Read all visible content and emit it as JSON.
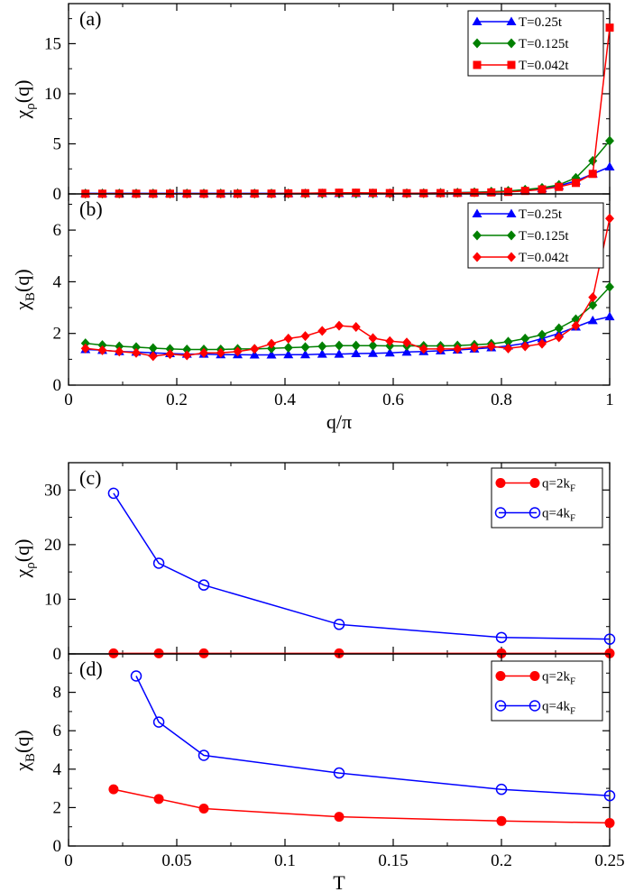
{
  "chart_data": [
    {
      "panel": "(a)",
      "type": "line",
      "xlabel": "",
      "ylabel": {
        "main": "χ",
        "sub": "ρ",
        "tail": "(q)"
      },
      "xlim": [
        0,
        1
      ],
      "ylim": [
        0,
        19
      ],
      "xticks": [
        0,
        0.2,
        0.4,
        0.6,
        0.8,
        1
      ],
      "yticks": [
        0,
        5,
        10,
        15
      ],
      "show_xtick_labels": false,
      "legend_position": "top-right",
      "x": [
        0.03125,
        0.0625,
        0.09375,
        0.125,
        0.15625,
        0.1875,
        0.21875,
        0.25,
        0.28125,
        0.3125,
        0.34375,
        0.375,
        0.40625,
        0.4375,
        0.46875,
        0.5,
        0.53125,
        0.5625,
        0.59375,
        0.625,
        0.65625,
        0.6875,
        0.71875,
        0.75,
        0.78125,
        0.8125,
        0.84375,
        0.875,
        0.90625,
        0.9375,
        0.96875,
        1.0
      ],
      "series": [
        {
          "name": "T=0.25t",
          "color": "#0000ff",
          "marker": "triangle",
          "values": [
            0.05,
            0.05,
            0.05,
            0.05,
            0.05,
            0.05,
            0.05,
            0.05,
            0.05,
            0.05,
            0.05,
            0.05,
            0.05,
            0.05,
            0.05,
            0.05,
            0.05,
            0.05,
            0.06,
            0.07,
            0.08,
            0.1,
            0.12,
            0.15,
            0.2,
            0.28,
            0.4,
            0.55,
            0.8,
            1.3,
            2.0,
            2.7
          ]
        },
        {
          "name": "T=0.125t",
          "color": "#008000",
          "marker": "diamond",
          "values": [
            0.03,
            0.03,
            0.03,
            0.03,
            0.03,
            0.03,
            0.03,
            0.03,
            0.03,
            0.03,
            0.03,
            0.03,
            0.03,
            0.03,
            0.03,
            0.04,
            0.04,
            0.04,
            0.05,
            0.06,
            0.07,
            0.09,
            0.12,
            0.16,
            0.22,
            0.3,
            0.42,
            0.6,
            0.9,
            1.6,
            3.3,
            5.3
          ]
        },
        {
          "name": "T=0.042t",
          "color": "#ff0000",
          "marker": "square",
          "values": [
            0.02,
            0.02,
            0.02,
            0.02,
            0.02,
            0.02,
            0.02,
            0.02,
            0.02,
            0.02,
            0.03,
            0.03,
            0.05,
            0.07,
            0.1,
            0.12,
            0.12,
            0.1,
            0.08,
            0.07,
            0.07,
            0.08,
            0.1,
            0.12,
            0.15,
            0.2,
            0.3,
            0.45,
            0.7,
            1.1,
            2.0,
            16.6
          ]
        }
      ]
    },
    {
      "panel": "(b)",
      "type": "line",
      "xlabel": "q/π",
      "ylabel": {
        "main": "χ",
        "sub": "B",
        "tail": "(q)"
      },
      "xlim": [
        0,
        1
      ],
      "ylim": [
        0,
        7.4
      ],
      "xticks": [
        0,
        0.2,
        0.4,
        0.6,
        0.8,
        1
      ],
      "yticks": [
        0,
        2,
        4,
        6
      ],
      "show_xtick_labels": true,
      "legend_position": "top-right",
      "x": [
        0.03125,
        0.0625,
        0.09375,
        0.125,
        0.15625,
        0.1875,
        0.21875,
        0.25,
        0.28125,
        0.3125,
        0.34375,
        0.375,
        0.40625,
        0.4375,
        0.46875,
        0.5,
        0.53125,
        0.5625,
        0.59375,
        0.625,
        0.65625,
        0.6875,
        0.71875,
        0.75,
        0.78125,
        0.8125,
        0.84375,
        0.875,
        0.90625,
        0.9375,
        0.96875,
        1.0
      ],
      "series": [
        {
          "name": "T=0.25t",
          "color": "#0000ff",
          "marker": "triangle",
          "values": [
            1.38,
            1.35,
            1.3,
            1.28,
            1.25,
            1.22,
            1.2,
            1.2,
            1.18,
            1.18,
            1.17,
            1.17,
            1.18,
            1.18,
            1.2,
            1.2,
            1.22,
            1.23,
            1.25,
            1.28,
            1.3,
            1.33,
            1.36,
            1.4,
            1.45,
            1.52,
            1.62,
            1.8,
            2.0,
            2.25,
            2.5,
            2.65
          ]
        },
        {
          "name": "T=0.125t",
          "color": "#008000",
          "marker": "diamond",
          "values": [
            1.62,
            1.55,
            1.5,
            1.47,
            1.43,
            1.4,
            1.38,
            1.38,
            1.38,
            1.4,
            1.4,
            1.42,
            1.45,
            1.47,
            1.5,
            1.53,
            1.53,
            1.53,
            1.52,
            1.52,
            1.52,
            1.52,
            1.53,
            1.56,
            1.6,
            1.68,
            1.8,
            1.95,
            2.2,
            2.55,
            3.1,
            3.8
          ]
        },
        {
          "name": "T=0.042t",
          "color": "#ff0000",
          "marker": "diamond",
          "values": [
            1.42,
            1.35,
            1.3,
            1.25,
            1.12,
            1.2,
            1.15,
            1.25,
            1.25,
            1.3,
            1.4,
            1.6,
            1.8,
            1.9,
            2.1,
            2.3,
            2.25,
            1.82,
            1.7,
            1.65,
            1.4,
            1.4,
            1.4,
            1.45,
            1.5,
            1.42,
            1.5,
            1.6,
            1.85,
            2.3,
            3.4,
            6.45
          ]
        }
      ]
    },
    {
      "panel": "(c)",
      "type": "line",
      "xlabel": "",
      "ylabel": {
        "main": "χ",
        "sub": "ρ",
        "tail": "(q)"
      },
      "xlim": [
        0,
        0.25
      ],
      "ylim": [
        0,
        35
      ],
      "xticks": [
        0,
        0.05,
        0.1,
        0.15,
        0.2,
        0.25
      ],
      "yticks": [
        0,
        10,
        20,
        30
      ],
      "show_xtick_labels": false,
      "legend_position": "top-right",
      "x": [
        0.0208,
        0.0417,
        0.0625,
        0.125,
        0.2,
        0.25
      ],
      "series": [
        {
          "name": "q=2k",
          "name_sub": "F",
          "color": "#ff0000",
          "marker": "filled-circle",
          "values": [
            0.1,
            0.1,
            0.1,
            0.1,
            0.1,
            0.1
          ]
        },
        {
          "name": "q=4k",
          "name_sub": "F",
          "color": "#0000ff",
          "marker": "open-circle",
          "values": [
            29.4,
            16.6,
            12.6,
            5.4,
            3.0,
            2.7
          ]
        }
      ]
    },
    {
      "panel": "(d)",
      "type": "line",
      "xlabel": "T",
      "ylabel": {
        "main": "χ",
        "sub": "B",
        "tail": "(q)"
      },
      "xlim": [
        0,
        0.25
      ],
      "ylim": [
        0,
        10
      ],
      "xticks": [
        0,
        0.05,
        0.1,
        0.15,
        0.2,
        0.25
      ],
      "yticks": [
        0,
        2,
        4,
        6,
        8
      ],
      "show_xtick_labels": true,
      "legend_position": "top-right",
      "series": [
        {
          "name": "q=2k",
          "name_sub": "F",
          "color": "#ff0000",
          "marker": "filled-circle",
          "x": [
            0.0208,
            0.0417,
            0.0625,
            0.125,
            0.2,
            0.25
          ],
          "values": [
            2.95,
            2.45,
            1.95,
            1.52,
            1.3,
            1.2
          ]
        },
        {
          "name": "q=4k",
          "name_sub": "F",
          "color": "#0000ff",
          "marker": "open-circle",
          "x": [
            0.03125,
            0.0417,
            0.0625,
            0.125,
            0.2,
            0.25
          ],
          "values": [
            8.85,
            6.45,
            4.72,
            3.8,
            2.95,
            2.62
          ]
        }
      ]
    }
  ]
}
